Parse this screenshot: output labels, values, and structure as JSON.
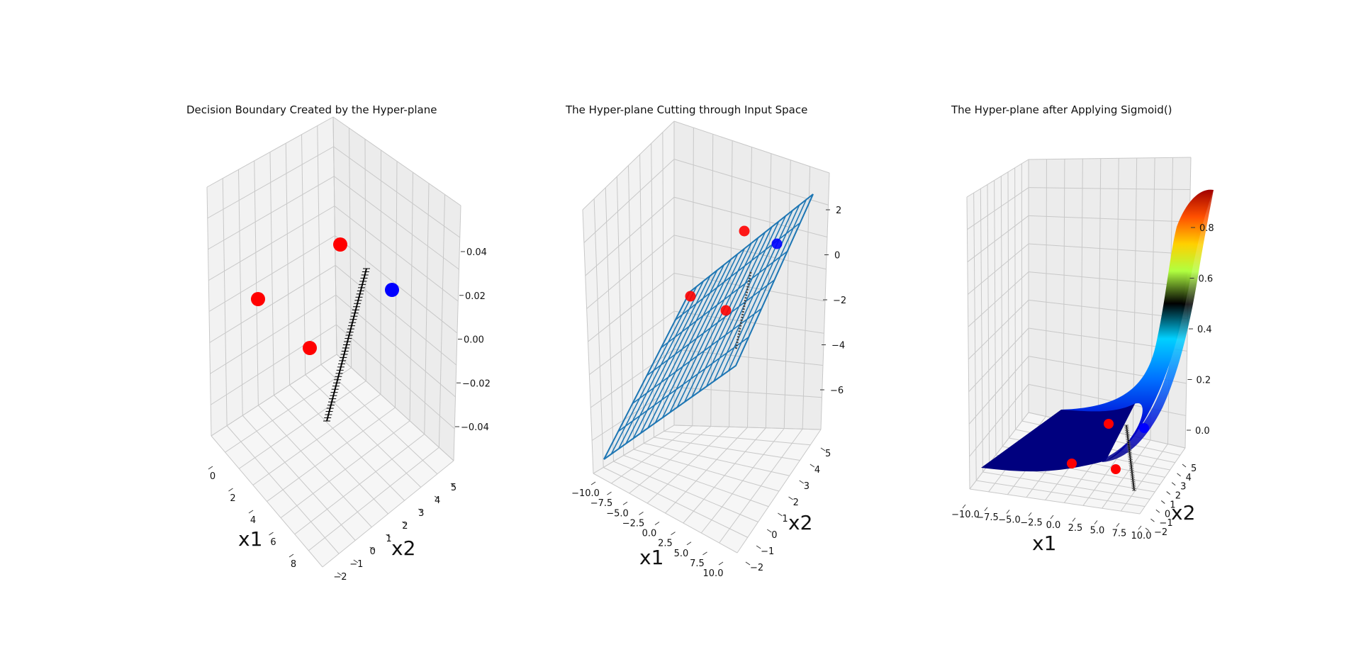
{
  "chart_data": [
    {
      "type": "scatter",
      "title": "Decision Boundary Created by the Hyper-plane",
      "xlabel": "x1",
      "ylabel": "x2",
      "x_ticks": [
        "0",
        "2",
        "4",
        "6",
        "8"
      ],
      "y_ticks": [
        "−2",
        "−1",
        "0",
        "1",
        "2",
        "3",
        "4",
        "5"
      ],
      "z_ticks": [
        "0.04",
        "0.02",
        "0.00",
        "−0.02",
        "−0.04"
      ],
      "series": [
        {
          "color": "#ff0000",
          "points": [
            [
              1,
              1,
              0
            ],
            [
              1,
              4,
              0
            ],
            [
              4,
              4,
              0
            ]
          ]
        },
        {
          "color": "#0000ff",
          "points": [
            [
              4,
              1,
              0
            ]
          ]
        }
      ],
      "boundary_line": {
        "color": "#000000",
        "marker": "+"
      }
    },
    {
      "type": "surface",
      "title": "The Hyper-plane Cutting through Input Space",
      "xlabel": "x1",
      "ylabel": "x2",
      "x_ticks": [
        "−10.0",
        "−7.5",
        "−5.0",
        "−2.5",
        "0.0",
        "2.5",
        "5.0",
        "7.5",
        "10.0"
      ],
      "y_ticks": [
        "−2",
        "−1",
        "0",
        "1",
        "2",
        "3",
        "4",
        "5"
      ],
      "z_ticks": [
        "2",
        "0",
        "−2",
        "−4",
        "−6"
      ],
      "surface": {
        "style": "wireframe",
        "color": "#1f77b4"
      },
      "series": [
        {
          "color": "#ff0000",
          "points": [
            [
              1,
              1,
              0
            ],
            [
              1,
              4,
              0
            ],
            [
              4,
              4,
              0
            ]
          ]
        },
        {
          "color": "#0000ff",
          "points": [
            [
              4,
              1,
              0
            ]
          ]
        }
      ]
    },
    {
      "type": "surface",
      "title": "The Hyper-plane after Applying Sigmoid()",
      "xlabel": "x1",
      "ylabel": "x2",
      "x_ticks": [
        "−10.0",
        "−7.5",
        "−5.0",
        "−2.5",
        "0.0",
        "2.5",
        "5.0",
        "7.5",
        "10.0"
      ],
      "y_ticks": [
        "−2",
        "−1",
        "0",
        "1",
        "2",
        "3",
        "4",
        "5"
      ],
      "z_ticks": [
        "0.8",
        "0.6",
        "0.4",
        "0.2",
        "0.0"
      ],
      "surface": {
        "style": "filled",
        "colormap": "jet"
      },
      "series": [
        {
          "color": "#ff0000",
          "points": [
            [
              1,
              1,
              0
            ],
            [
              1,
              4,
              0
            ],
            [
              4,
              4,
              0
            ]
          ]
        },
        {
          "color": "#0000ff",
          "points": [
            [
              4,
              1,
              0
            ]
          ]
        }
      ]
    }
  ]
}
